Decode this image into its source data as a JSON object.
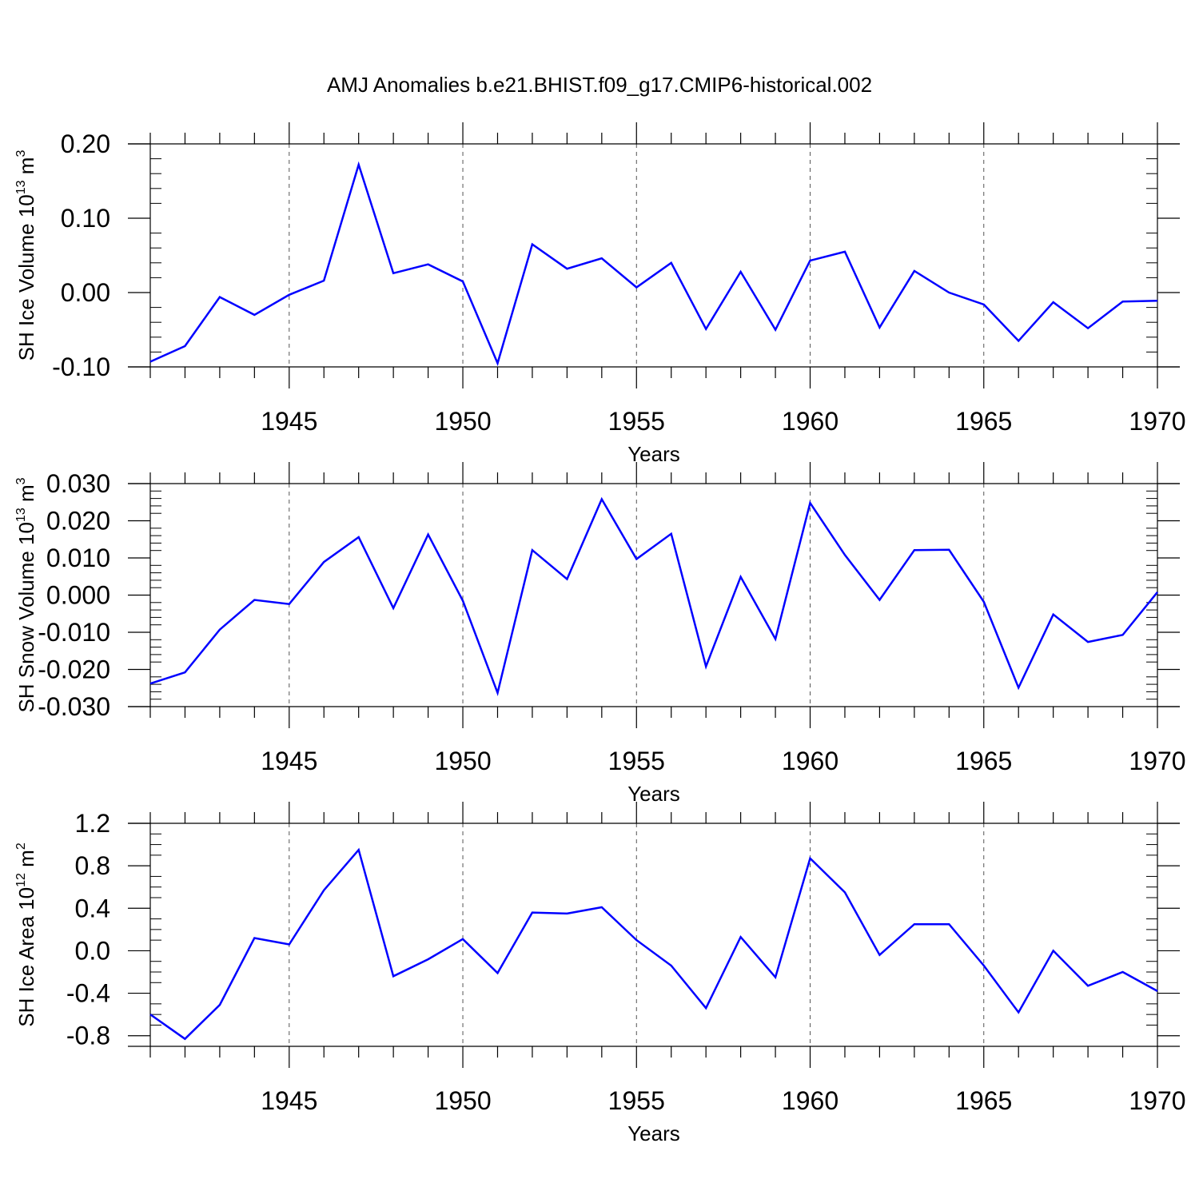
{
  "title": "AMJ Anomalies b.e21.BHIST.f09_g17.CMIP6-historical.002",
  "colors": {
    "line": "#0000ff",
    "frame": "#000000",
    "grid": "#555555"
  },
  "chart_data": [
    {
      "type": "line",
      "ylabel": "SH Ice Volume 10",
      "ylabel_exp": "13",
      "ylabel_unit": "m",
      "ylabel_unit_exp": "3",
      "xlabel": "Years",
      "xlim": [
        1941,
        1970
      ],
      "ylim": [
        -0.1,
        0.2
      ],
      "yticks": [
        -0.1,
        0.0,
        0.1,
        0.2
      ],
      "ytick_labels": [
        "-0.10",
        "0.00",
        "0.10",
        "0.20"
      ],
      "yminor_step": 0.02,
      "xticks": [
        1945,
        1950,
        1955,
        1960,
        1965,
        1970
      ],
      "xtick_labels": [
        "1945",
        "1950",
        "1955",
        "1960",
        "1965",
        "1970"
      ],
      "grid": "vertical dashed at major x ticks",
      "x": [
        1941,
        1942,
        1943,
        1944,
        1945,
        1946,
        1947,
        1948,
        1949,
        1950,
        1951,
        1952,
        1953,
        1954,
        1955,
        1956,
        1957,
        1958,
        1959,
        1960,
        1961,
        1962,
        1963,
        1964,
        1965,
        1966,
        1967,
        1968,
        1969,
        1970
      ],
      "y": [
        -0.093,
        -0.072,
        -0.006,
        -0.03,
        -0.003,
        0.016,
        0.172,
        0.026,
        0.038,
        0.015,
        -0.095,
        0.065,
        0.032,
        0.046,
        0.007,
        0.04,
        -0.049,
        0.028,
        -0.05,
        0.043,
        0.055,
        -0.047,
        0.029,
        0.0,
        -0.016,
        -0.065,
        -0.013,
        -0.048,
        -0.012,
        -0.011
      ]
    },
    {
      "type": "line",
      "ylabel": "SH Snow Volume 10",
      "ylabel_exp": "13",
      "ylabel_unit": "m",
      "ylabel_unit_exp": "3",
      "xlabel": "Years",
      "xlim": [
        1941,
        1970
      ],
      "ylim": [
        -0.03,
        0.03
      ],
      "yticks": [
        -0.03,
        -0.02,
        -0.01,
        0.0,
        0.01,
        0.02,
        0.03
      ],
      "ytick_labels": [
        "-0.030",
        "-0.020",
        "-0.010",
        "0.000",
        "0.010",
        "0.020",
        "0.030"
      ],
      "yminor_step": 0.002,
      "xticks": [
        1945,
        1950,
        1955,
        1960,
        1965,
        1970
      ],
      "xtick_labels": [
        "1945",
        "1950",
        "1955",
        "1960",
        "1965",
        "1970"
      ],
      "grid": "vertical dashed at major x ticks",
      "x": [
        1941,
        1942,
        1943,
        1944,
        1945,
        1946,
        1947,
        1948,
        1949,
        1950,
        1951,
        1952,
        1953,
        1954,
        1955,
        1956,
        1957,
        1958,
        1959,
        1960,
        1961,
        1962,
        1963,
        1964,
        1965,
        1966,
        1967,
        1968,
        1969,
        1970
      ],
      "y": [
        -0.0238,
        -0.0208,
        -0.0093,
        -0.0013,
        -0.0024,
        0.0089,
        0.0156,
        -0.0035,
        0.0163,
        -0.0015,
        -0.0263,
        0.0121,
        0.0043,
        0.0258,
        0.0097,
        0.0165,
        -0.0192,
        0.0049,
        -0.0118,
        0.0248,
        0.0108,
        -0.0013,
        0.0121,
        0.0122,
        -0.0018,
        -0.0249,
        -0.0052,
        -0.0126,
        -0.0107,
        0.0008
      ]
    },
    {
      "type": "line",
      "ylabel": "SH Ice Area 10",
      "ylabel_exp": "12",
      "ylabel_unit": "m",
      "ylabel_unit_exp": "2",
      "xlabel": "Years",
      "xlim": [
        1941,
        1970
      ],
      "ylim": [
        -0.9,
        1.2
      ],
      "yticks": [
        -0.8,
        -0.4,
        0.0,
        0.4,
        0.8,
        1.2
      ],
      "ytick_labels": [
        "-0.8",
        "-0.4",
        "0.0",
        "0.4",
        "0.8",
        "1.2"
      ],
      "yminor_step": 0.1,
      "xticks": [
        1945,
        1950,
        1955,
        1960,
        1965,
        1970
      ],
      "xtick_labels": [
        "1945",
        "1950",
        "1955",
        "1960",
        "1965",
        "1970"
      ],
      "grid": "vertical dashed at major x ticks",
      "x": [
        1941,
        1942,
        1943,
        1944,
        1945,
        1946,
        1947,
        1948,
        1949,
        1950,
        1951,
        1952,
        1953,
        1954,
        1955,
        1956,
        1957,
        1958,
        1959,
        1960,
        1961,
        1962,
        1963,
        1964,
        1965,
        1966,
        1967,
        1968,
        1969,
        1970
      ],
      "y": [
        -0.6,
        -0.83,
        -0.51,
        0.12,
        0.06,
        0.57,
        0.95,
        -0.24,
        -0.08,
        0.11,
        -0.21,
        0.36,
        0.35,
        0.41,
        0.1,
        -0.14,
        -0.54,
        0.13,
        -0.25,
        0.87,
        0.55,
        -0.04,
        0.25,
        0.25,
        -0.14,
        -0.58,
        0.0,
        -0.33,
        -0.2,
        -0.38
      ]
    }
  ]
}
